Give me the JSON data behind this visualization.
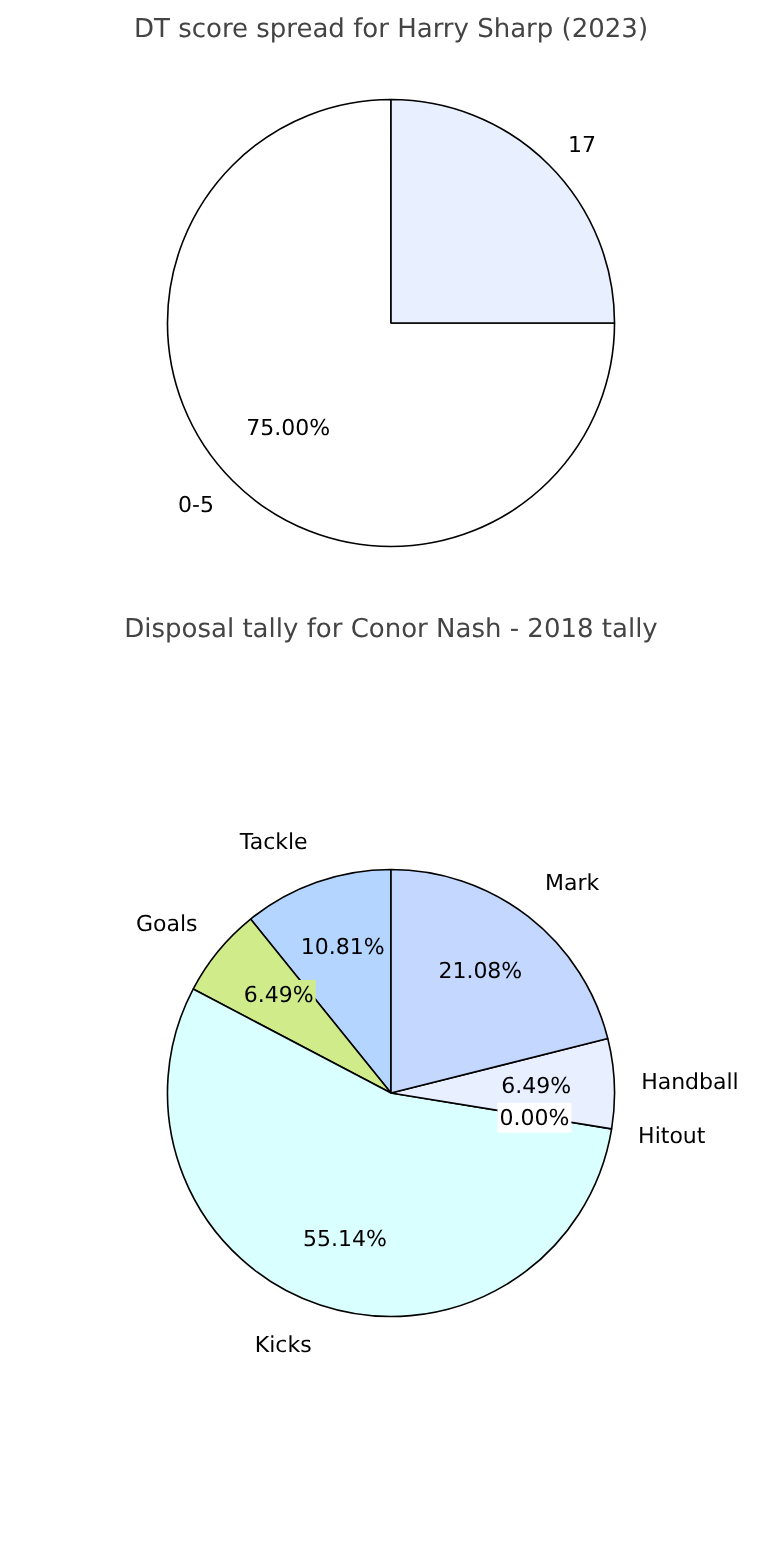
{
  "chart_data": [
    {
      "type": "pie",
      "title": "DT score spread for Harry Sharp (2023)",
      "categories": [
        "0-5",
        "17"
      ],
      "values": [
        75.0,
        25.0
      ],
      "colors": [
        "#ffffff",
        "#e8f0ff"
      ],
      "value_labels": [
        "75.00%",
        null
      ]
    },
    {
      "type": "pie",
      "title": "Disposal tally for Conor Nash - 2018 tally",
      "categories": [
        "Tackle",
        "Goals",
        "Kicks",
        "Hitout",
        "Handball",
        "Mark"
      ],
      "values": [
        10.81,
        6.49,
        55.14,
        0.0,
        6.49,
        21.08
      ],
      "colors": [
        "#b3d5ff",
        "#d0eb8a",
        "#d9ffff",
        "#c0c0c0",
        "#e8f0ff",
        "#c4d7ff"
      ],
      "value_labels": [
        "10.81%",
        "6.49%",
        "55.14%",
        "0.00%",
        "6.49%",
        "21.08%"
      ]
    }
  ]
}
